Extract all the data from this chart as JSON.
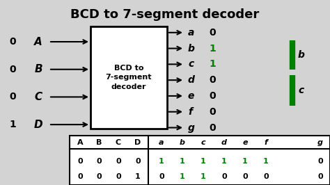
{
  "title": "BCD to 7-segment decoder",
  "title_fontsize": 13,
  "bg_color": "#d3d3d3",
  "box_label": "BCD to\n7-segment\ndecoder",
  "inputs": [
    "A",
    "B",
    "C",
    "D"
  ],
  "input_values": [
    "0",
    "0",
    "0",
    "1"
  ],
  "outputs": [
    "a",
    "b",
    "c",
    "d",
    "e",
    "f",
    "g"
  ],
  "output_values": [
    "0",
    "1",
    "1",
    "0",
    "0",
    "0",
    "0"
  ],
  "output_colors": [
    "#000000",
    "#008000",
    "#008000",
    "#000000",
    "#000000",
    "#000000",
    "#000000"
  ],
  "green": "#008000",
  "black": "#000000",
  "table_headers_inputs": [
    "A",
    "B",
    "C",
    "D"
  ],
  "table_headers_outputs": [
    "a",
    "b",
    "c",
    "d",
    "e",
    "f",
    "g"
  ],
  "table_row1": [
    "0",
    "0",
    "0",
    "0",
    "1",
    "1",
    "1",
    "1",
    "1",
    "1",
    "0"
  ],
  "table_row2": [
    "0",
    "0",
    "0",
    "1",
    "0",
    "1",
    "1",
    "0",
    "0",
    "0",
    "0"
  ],
  "table_row1_colors": [
    "#000000",
    "#000000",
    "#000000",
    "#000000",
    "#008000",
    "#008000",
    "#008000",
    "#008000",
    "#008000",
    "#008000",
    "#000000"
  ],
  "table_row2_colors": [
    "#000000",
    "#000000",
    "#000000",
    "#000000",
    "#000000",
    "#008000",
    "#008000",
    "#000000",
    "#000000",
    "#000000",
    "#000000"
  ]
}
